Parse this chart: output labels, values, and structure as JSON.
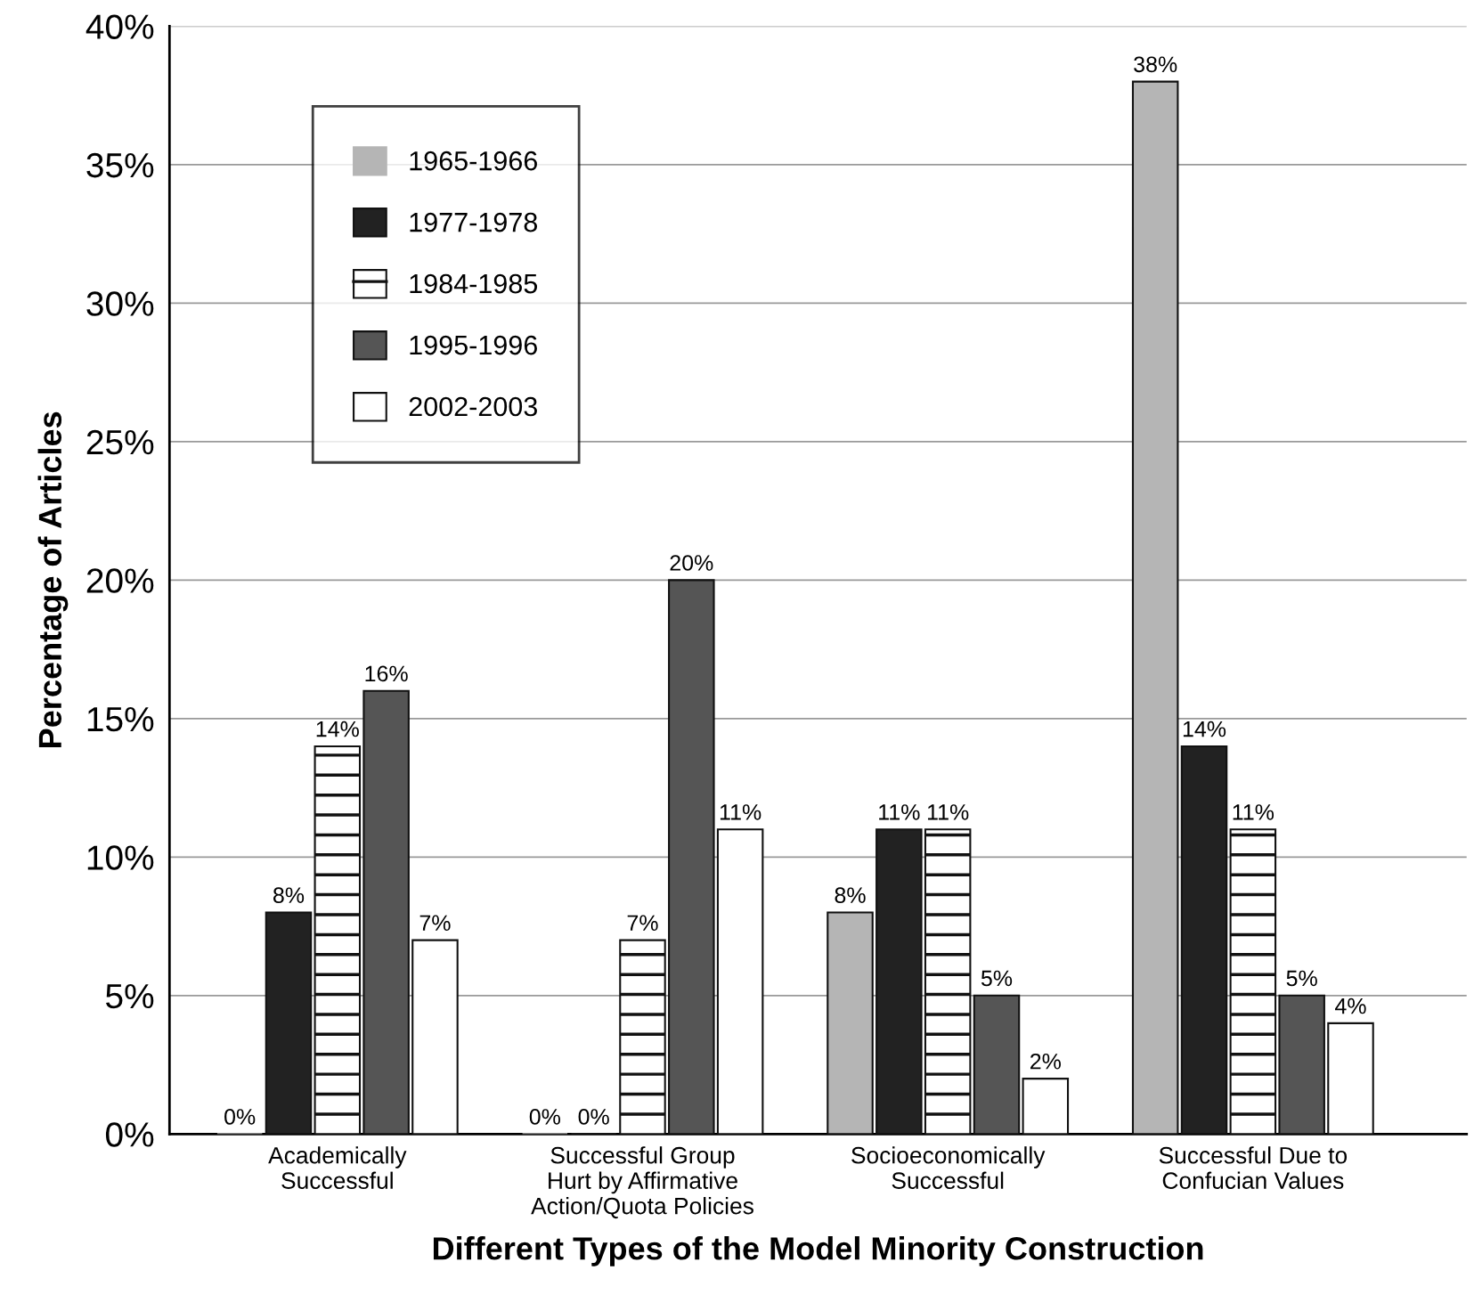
{
  "chart_data": {
    "type": "bar",
    "xlabel": "Different Types of the Model Minority Construction",
    "ylabel": "Percentage of Articles",
    "categories": [
      "Academically\nSuccessful",
      "Successful Group\nHurt by Affirmative\nAction/Quota Policies",
      "Socioeconomically\nSuccessful",
      "Successful Due to\nConfucian Values"
    ],
    "series": [
      {
        "name": "1965-1966",
        "color": "#b5b5b5",
        "values": [
          0,
          0,
          8,
          38
        ],
        "value_labels": [
          "0%",
          "0%",
          "8%",
          "38%"
        ]
      },
      {
        "name": "1977-1978",
        "color": "#222222",
        "values": [
          8,
          0,
          11,
          14
        ],
        "value_labels": [
          "8%",
          "0%",
          "11%",
          "14%"
        ]
      },
      {
        "name": "1984-1985",
        "color": "#ffffff",
        "values": [
          14,
          7,
          11,
          11
        ],
        "value_labels": [
          "14%",
          "7%",
          "11%",
          "11%"
        ]
      },
      {
        "name": "1995-1996",
        "color": "#555555",
        "values": [
          16,
          20,
          5,
          5
        ],
        "value_labels": [
          "16%",
          "20%",
          "5%",
          "5%"
        ]
      },
      {
        "name": "2002-2003",
        "color": "#ffffff",
        "values": [
          7,
          11,
          2,
          4
        ],
        "value_labels": [
          "7%",
          "11%",
          "2%",
          "4%"
        ]
      }
    ],
    "ylim": [
      0,
      40
    ],
    "yticks": [
      {
        "value": 0,
        "label": "0%"
      },
      {
        "value": 5,
        "label": "5%"
      },
      {
        "value": 10,
        "label": "10%"
      },
      {
        "value": 15,
        "label": "15%"
      },
      {
        "value": 20,
        "label": "20%"
      },
      {
        "value": 25,
        "label": "25%"
      },
      {
        "value": 30,
        "label": "30%"
      },
      {
        "value": 35,
        "label": "35%"
      },
      {
        "value": 40,
        "label": "40%"
      }
    ],
    "grid": "y",
    "legend": "top left"
  }
}
